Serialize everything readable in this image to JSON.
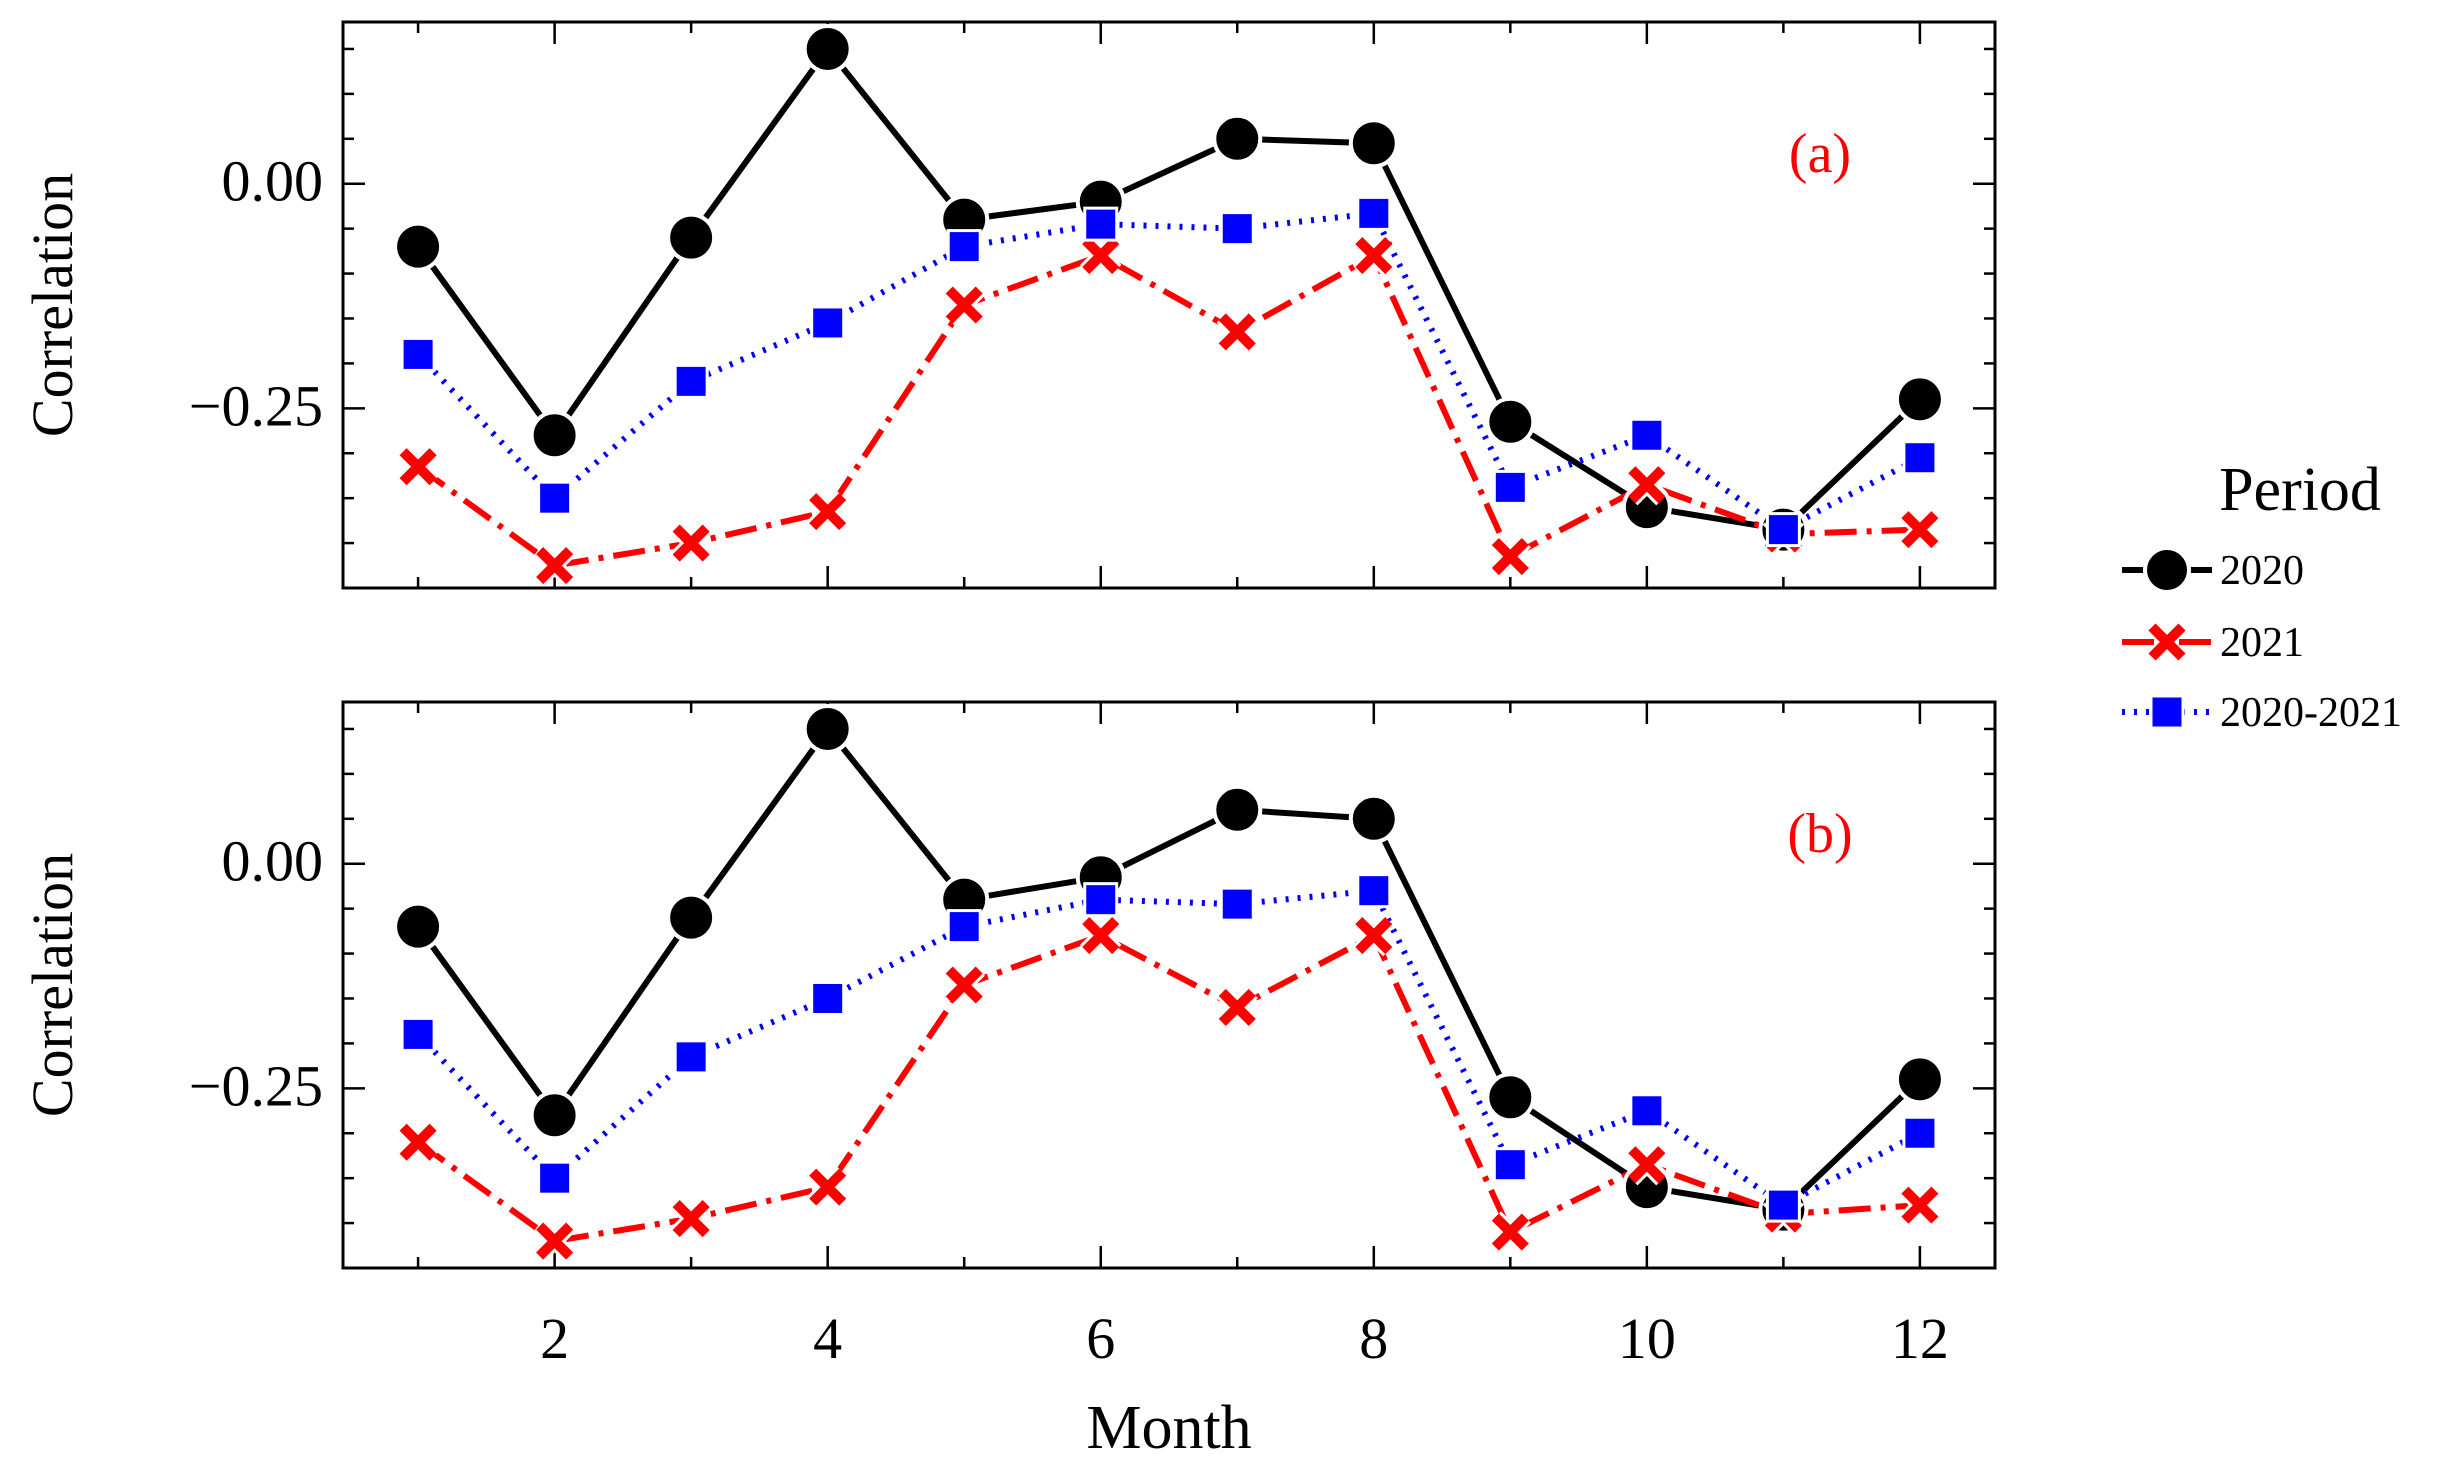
{
  "chart_data": {
    "type": "line",
    "xlabel": "Month",
    "x_ticks": [
      2,
      4,
      6,
      8,
      10,
      12
    ],
    "x_tick_labels": [
      "2",
      "4",
      "6",
      "8",
      "10",
      "12"
    ],
    "legend": {
      "title": "Period",
      "placement": "right"
    },
    "series_colors": {
      "2020": "#000000",
      "2021": "#ff0000",
      "2020-2021": "#0000ff"
    },
    "panels": [
      {
        "label": "(a)",
        "label_color": "#ff0000",
        "ylabel": "Correlation",
        "ylim": [
          -0.45,
          0.18
        ],
        "x_range": [
          0.45,
          12.55
        ],
        "y_ticks": [
          0.0,
          -0.25
        ],
        "y_tick_labels": [
          "0.00",
          "−0.25"
        ],
        "x": [
          1,
          2,
          3,
          4,
          5,
          6,
          7,
          8,
          9,
          10,
          11,
          12
        ],
        "series": [
          {
            "name": "2020",
            "marker": "circle",
            "line": "solid",
            "values": [
              -0.07,
              -0.28,
              -0.06,
              0.15,
              -0.04,
              -0.02,
              0.05,
              0.045,
              -0.265,
              -0.36,
              -0.385,
              -0.24
            ]
          },
          {
            "name": "2021",
            "marker": "x",
            "line": "dashdot",
            "values": [
              -0.315,
              -0.425,
              -0.4,
              -0.365,
              -0.135,
              -0.08,
              -0.165,
              -0.08,
              -0.415,
              -0.335,
              -0.39,
              -0.385
            ]
          },
          {
            "name": "2020-2021",
            "marker": "square",
            "line": "dotted",
            "values": [
              -0.19,
              -0.35,
              -0.22,
              -0.155,
              -0.07,
              -0.045,
              -0.05,
              -0.033,
              -0.338,
              -0.28,
              -0.385,
              -0.305
            ]
          }
        ]
      },
      {
        "label": "(b)",
        "label_color": "#ff0000",
        "ylabel": "Correlation",
        "ylim": [
          -0.45,
          0.18
        ],
        "x_range": [
          0.45,
          12.55
        ],
        "y_ticks": [
          0.0,
          -0.25
        ],
        "y_tick_labels": [
          "0.00",
          "−0.25"
        ],
        "x": [
          1,
          2,
          3,
          4,
          5,
          6,
          7,
          8,
          9,
          10,
          11,
          12
        ],
        "series": [
          {
            "name": "2020",
            "marker": "circle",
            "line": "solid",
            "values": [
              -0.07,
              -0.28,
              -0.06,
              0.15,
              -0.04,
              -0.015,
              0.06,
              0.05,
              -0.26,
              -0.36,
              -0.385,
              -0.24
            ]
          },
          {
            "name": "2021",
            "marker": "x",
            "line": "dashdot",
            "values": [
              -0.31,
              -0.42,
              -0.395,
              -0.36,
              -0.135,
              -0.08,
              -0.16,
              -0.08,
              -0.41,
              -0.335,
              -0.39,
              -0.38
            ]
          },
          {
            "name": "2020-2021",
            "marker": "square",
            "line": "dotted",
            "values": [
              -0.19,
              -0.35,
              -0.215,
              -0.15,
              -0.07,
              -0.04,
              -0.045,
              -0.03,
              -0.335,
              -0.275,
              -0.38,
              -0.3
            ]
          }
        ]
      }
    ]
  }
}
